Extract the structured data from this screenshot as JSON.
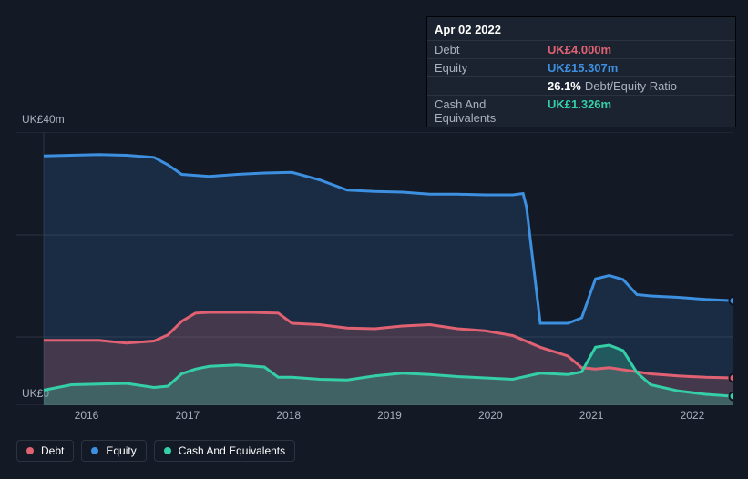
{
  "tooltip": {
    "date": "Apr 02 2022",
    "rows": [
      {
        "label": "Debt",
        "value": "UK£4.000m",
        "class": "v-debt"
      },
      {
        "label": "Equity",
        "value": "UK£15.307m",
        "class": "v-equity"
      },
      {
        "label": "",
        "value": "26.1%",
        "sub": "Debt/Equity Ratio",
        "class": "v-ratio"
      },
      {
        "label": "Cash And Equivalents",
        "value": "UK£1.326m",
        "class": "v-cash"
      }
    ]
  },
  "legend": [
    {
      "label": "Debt",
      "swatch": "sw-debt"
    },
    {
      "label": "Equity",
      "swatch": "sw-equity"
    },
    {
      "label": "Cash And Equivalents",
      "swatch": "sw-cash"
    }
  ],
  "yaxis": {
    "top": "UK£40m",
    "bottom": "UK£0"
  },
  "xaxis": {
    "labels": [
      "2016",
      "2017",
      "2018",
      "2019",
      "2020",
      "2021",
      "2022"
    ]
  },
  "chart": {
    "type": "area",
    "ylim": [
      0,
      40
    ],
    "ytick_step": 15,
    "background_color": "#131a26",
    "grid_color": "#2c3340",
    "colors": {
      "debt": "#e06272",
      "equity": "#3d8fe0",
      "cash": "#35cfa7"
    },
    "line_width": 3,
    "area_opacity": {
      "equity": 0.16,
      "debt": 0.22,
      "cash": 0.28
    },
    "font_family": "sans-serif",
    "axis_fontsize": 12,
    "cursor_x": 1.0,
    "end_markers": {
      "debt": true,
      "equity": true,
      "cash": true
    },
    "series": {
      "equity": {
        "x": [
          0.0,
          0.04,
          0.08,
          0.12,
          0.16,
          0.18,
          0.2,
          0.24,
          0.28,
          0.32,
          0.36,
          0.4,
          0.44,
          0.48,
          0.52,
          0.56,
          0.6,
          0.64,
          0.68,
          0.695,
          0.7,
          0.72,
          0.76,
          0.78,
          0.8,
          0.82,
          0.84,
          0.86,
          0.88,
          0.92,
          0.96,
          1.0
        ],
        "y": [
          36.5,
          36.6,
          36.7,
          36.6,
          36.3,
          35.2,
          33.8,
          33.5,
          33.8,
          34.0,
          34.1,
          33.0,
          31.5,
          31.3,
          31.2,
          30.9,
          30.9,
          30.8,
          30.8,
          31.0,
          29.0,
          12.0,
          12.0,
          12.8,
          18.5,
          19.0,
          18.4,
          16.2,
          16.0,
          15.8,
          15.5,
          15.307
        ]
      },
      "debt": {
        "x": [
          0.0,
          0.04,
          0.08,
          0.12,
          0.16,
          0.18,
          0.2,
          0.22,
          0.24,
          0.3,
          0.34,
          0.36,
          0.4,
          0.44,
          0.48,
          0.52,
          0.56,
          0.6,
          0.64,
          0.68,
          0.72,
          0.76,
          0.78,
          0.8,
          0.82,
          0.84,
          0.88,
          0.92,
          0.96,
          1.0
        ],
        "y": [
          9.5,
          9.5,
          9.5,
          9.1,
          9.4,
          10.3,
          12.3,
          13.5,
          13.6,
          13.6,
          13.5,
          12.0,
          11.8,
          11.3,
          11.2,
          11.6,
          11.8,
          11.2,
          10.9,
          10.2,
          8.5,
          7.2,
          5.5,
          5.3,
          5.5,
          5.2,
          4.6,
          4.3,
          4.1,
          4.0
        ]
      },
      "cash": {
        "x": [
          0.0,
          0.04,
          0.08,
          0.12,
          0.16,
          0.18,
          0.2,
          0.22,
          0.24,
          0.28,
          0.32,
          0.34,
          0.36,
          0.4,
          0.44,
          0.48,
          0.52,
          0.56,
          0.6,
          0.64,
          0.68,
          0.72,
          0.76,
          0.78,
          0.8,
          0.82,
          0.84,
          0.86,
          0.88,
          0.92,
          0.96,
          1.0
        ],
        "y": [
          2.2,
          3.0,
          3.1,
          3.2,
          2.6,
          2.8,
          4.6,
          5.3,
          5.7,
          5.9,
          5.6,
          4.1,
          4.1,
          3.8,
          3.7,
          4.3,
          4.7,
          4.5,
          4.2,
          4.0,
          3.8,
          4.7,
          4.5,
          4.9,
          8.5,
          8.8,
          8.0,
          4.8,
          3.0,
          2.1,
          1.6,
          1.326
        ]
      }
    }
  }
}
